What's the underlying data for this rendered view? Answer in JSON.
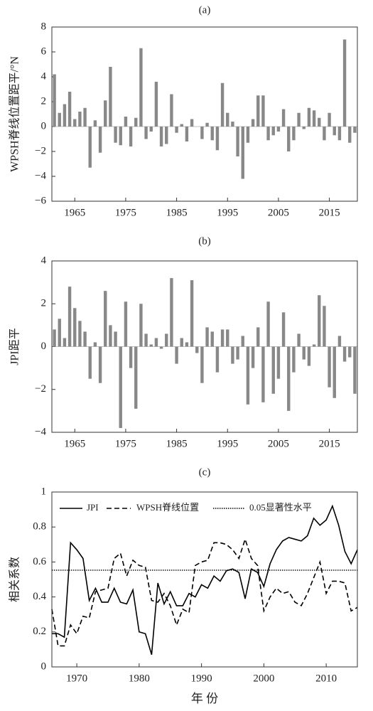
{
  "chart_data": [
    {
      "type": "bar",
      "title": "(a)",
      "y_label": "WPSH脊线位置距平/°N",
      "color": "#888888",
      "x": [
        1961,
        1962,
        1963,
        1964,
        1965,
        1966,
        1967,
        1968,
        1969,
        1970,
        1971,
        1972,
        1973,
        1974,
        1975,
        1976,
        1977,
        1978,
        1979,
        1980,
        1981,
        1982,
        1983,
        1984,
        1985,
        1986,
        1987,
        1988,
        1989,
        1990,
        1991,
        1992,
        1993,
        1994,
        1995,
        1996,
        1997,
        1998,
        1999,
        2000,
        2001,
        2002,
        2003,
        2004,
        2005,
        2006,
        2007,
        2008,
        2009,
        2010,
        2011,
        2012,
        2013,
        2014,
        2015,
        2016,
        2017,
        2018,
        2019,
        2020
      ],
      "values": [
        4.2,
        1.1,
        1.8,
        2.8,
        0.6,
        1.2,
        1.5,
        -3.3,
        0.5,
        -2.1,
        2.1,
        4.8,
        -1.3,
        -1.5,
        0.8,
        -1.6,
        0.7,
        6.3,
        -1.0,
        -0.4,
        3.6,
        -1.6,
        -1.4,
        2.6,
        -0.5,
        0.2,
        -1.2,
        0.6,
        0.0,
        -1.0,
        0.3,
        -1.1,
        -1.9,
        3.5,
        1.1,
        0.4,
        -2.4,
        -4.2,
        -1.3,
        0.6,
        2.5,
        2.5,
        -1.1,
        -0.7,
        -0.4,
        1.4,
        -2.0,
        -1.1,
        1.1,
        -0.2,
        1.5,
        1.3,
        0.7,
        -1.1,
        1.1,
        -0.7,
        -1.1,
        7.0,
        -1.3,
        -0.5
      ],
      "xlim": [
        1960.5,
        2020.5
      ],
      "xticks": [
        1965,
        1975,
        1985,
        1995,
        2005,
        2015
      ],
      "ylim": [
        -6,
        8
      ],
      "yticks": [
        8,
        6,
        4,
        2,
        0,
        {
          "value": -2,
          "label": "−2"
        },
        {
          "value": -4,
          "label": "−4"
        },
        {
          "value": -6,
          "label": "−6"
        }
      ]
    },
    {
      "type": "bar",
      "title": "(b)",
      "y_label": "JPI距平",
      "color": "#888888",
      "x": [
        1961,
        1962,
        1963,
        1964,
        1965,
        1966,
        1967,
        1968,
        1969,
        1970,
        1971,
        1972,
        1973,
        1974,
        1975,
        1976,
        1977,
        1978,
        1979,
        1980,
        1981,
        1982,
        1983,
        1984,
        1985,
        1986,
        1987,
        1988,
        1989,
        1990,
        1991,
        1992,
        1993,
        1994,
        1995,
        1996,
        1997,
        1998,
        1999,
        2000,
        2001,
        2002,
        2003,
        2004,
        2005,
        2006,
        2007,
        2008,
        2009,
        2010,
        2011,
        2012,
        2013,
        2014,
        2015,
        2016,
        2017,
        2018,
        2019,
        2020
      ],
      "values": [
        0.8,
        1.3,
        0.4,
        2.8,
        1.8,
        1.2,
        0.7,
        -1.5,
        0.2,
        -1.7,
        2.6,
        1.0,
        0.7,
        -3.8,
        2.1,
        -1.0,
        -2.9,
        2.0,
        0.6,
        0.1,
        0.4,
        -0.1,
        0.6,
        3.2,
        -0.8,
        0.4,
        0.2,
        3.1,
        -0.3,
        -1.7,
        0.9,
        0.7,
        -1.2,
        0.8,
        0.8,
        -0.8,
        -0.6,
        0.5,
        -2.7,
        -1.0,
        0.9,
        -2.6,
        2.1,
        -2.2,
        -1.5,
        1.6,
        -3.0,
        -1.2,
        0.6,
        -0.6,
        -0.9,
        0.1,
        2.4,
        1.9,
        -1.9,
        -2.4,
        0.5,
        -0.7,
        -0.5,
        -2.2
      ],
      "xlim": [
        1960.5,
        2020.5
      ],
      "xticks": [
        1965,
        1975,
        1985,
        1995,
        2005,
        2015
      ],
      "ylim": [
        -4,
        4
      ],
      "yticks": [
        4,
        2,
        0,
        {
          "value": -2,
          "label": "−2"
        },
        {
          "value": -4,
          "label": "−4"
        }
      ]
    },
    {
      "type": "line",
      "title": "(c)",
      "y_label": "相关系数",
      "x_label": "年 份",
      "x": [
        1966,
        1967,
        1968,
        1969,
        1970,
        1971,
        1972,
        1973,
        1974,
        1975,
        1976,
        1977,
        1978,
        1979,
        1980,
        1981,
        1982,
        1983,
        1984,
        1985,
        1986,
        1987,
        1988,
        1989,
        1990,
        1991,
        1992,
        1993,
        1994,
        1995,
        1996,
        1997,
        1998,
        1999,
        2000,
        2001,
        2002,
        2003,
        2004,
        2005,
        2006,
        2007,
        2008,
        2009,
        2010,
        2011,
        2012,
        2013,
        2014,
        2015
      ],
      "series": [
        {
          "name": "JPI",
          "color": "#000000",
          "dash": "solid",
          "values": [
            0.19,
            0.19,
            0.17,
            0.71,
            0.67,
            0.62,
            0.38,
            0.45,
            0.37,
            0.37,
            0.45,
            0.37,
            0.36,
            0.44,
            0.2,
            0.19,
            0.07,
            0.48,
            0.36,
            0.43,
            0.35,
            0.35,
            0.42,
            0.4,
            0.47,
            0.45,
            0.52,
            0.49,
            0.55,
            0.56,
            0.54,
            0.39,
            0.56,
            0.54,
            0.46,
            0.59,
            0.67,
            0.72,
            0.74,
            0.73,
            0.72,
            0.75,
            0.85,
            0.81,
            0.84,
            0.92,
            0.81,
            0.66,
            0.59,
            0.67
          ]
        },
        {
          "name": "WPSH脊线位置",
          "color": "#000000",
          "dash": "dashed",
          "values": [
            0.33,
            0.12,
            0.12,
            0.24,
            0.19,
            0.29,
            0.28,
            0.43,
            0.44,
            0.45,
            0.62,
            0.65,
            0.52,
            0.61,
            0.58,
            0.57,
            0.38,
            0.37,
            0.42,
            0.35,
            0.24,
            0.33,
            0.31,
            0.58,
            0.6,
            0.61,
            0.71,
            0.71,
            0.7,
            0.67,
            0.62,
            0.73,
            0.62,
            0.58,
            0.32,
            0.4,
            0.45,
            0.42,
            0.43,
            0.37,
            0.35,
            0.42,
            0.51,
            0.6,
            0.42,
            0.49,
            0.49,
            0.48,
            0.32,
            0.34
          ]
        }
      ],
      "reference_line": {
        "name": "0.05显著性水平",
        "value": 0.553,
        "color": "#000000",
        "dash": "dotted"
      },
      "xlim": [
        1966,
        2015
      ],
      "xticks": [
        1970,
        1980,
        1990,
        2000,
        2010
      ],
      "ylim": [
        0,
        1
      ],
      "yticks": [
        0,
        0.2,
        0.4,
        0.6,
        0.8,
        1
      ]
    }
  ]
}
